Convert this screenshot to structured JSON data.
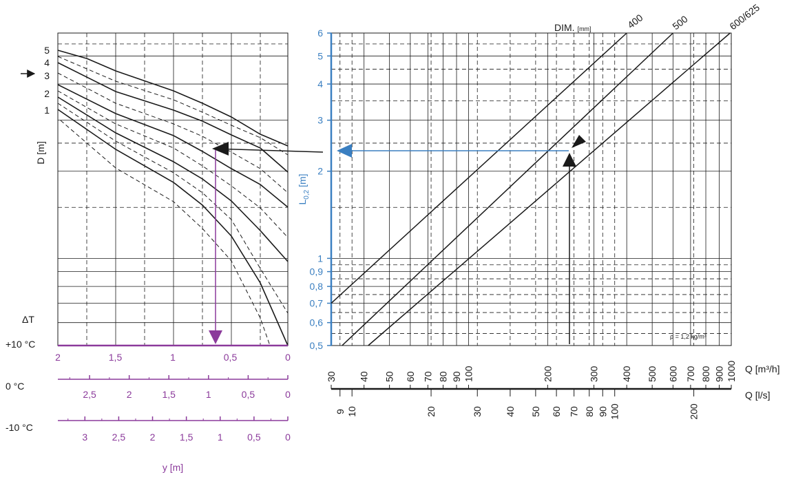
{
  "colors": {
    "black": "#1a1a1a",
    "blue": "#3a7fc1",
    "purple": "#8b3a9b"
  },
  "chart_data": [
    {
      "type": "line",
      "name": "throw-diagram",
      "ylabel": "D [m]",
      "y_tick_labels": [
        "1",
        "2",
        "3",
        "4",
        "5"
      ],
      "marker_label": "3",
      "delta_t_label": "ΔT",
      "y_axis_title": "y [m]",
      "scales": [
        {
          "label": "+10 °C",
          "ticks": [
            "2",
            "1,5",
            "1",
            "0,5",
            "0"
          ],
          "max": 2
        },
        {
          "label": "0 °C",
          "ticks": [
            "2,5",
            "2",
            "1,5",
            "1",
            "0,5",
            "0"
          ],
          "max": 2.9
        },
        {
          "label": "-10 °C",
          "ticks": [
            "3",
            "2,5",
            "2",
            "1,5",
            "1",
            "0,5",
            "0"
          ],
          "max": 3.4
        }
      ],
      "example_y_value": 0.6
    },
    {
      "type": "line",
      "name": "flow-diagram",
      "xlabel": "Q [m³/h]",
      "xlabel2": "Q [l/s]",
      "ylabel_main": "L",
      "ylabel_sub": "0,2",
      "ylabel_unit": " [m]",
      "dim_label": "DIM.",
      "dim_unit": "[mm]",
      "density_label": "ρ = 1,2 kg/m³",
      "x_scale": "log",
      "y_scale": "log",
      "xlim": [
        30,
        1000
      ],
      "ylim": [
        0.5,
        6
      ],
      "y_ticks": [
        0.5,
        0.6,
        0.7,
        0.8,
        0.9,
        1,
        2,
        3,
        4,
        5,
        6
      ],
      "y_tick_labels": [
        "0,5",
        "0,6",
        "0,7",
        "0,8",
        "0,9",
        "1",
        "2",
        "3",
        "4",
        "5",
        "6"
      ],
      "q_m3h_ticks": [
        30,
        40,
        50,
        60,
        70,
        80,
        90,
        100,
        200,
        300,
        400,
        500,
        600,
        700,
        800,
        900,
        1000
      ],
      "q_m3h_labels": [
        "30",
        "40",
        "50",
        "60",
        "70",
        "80",
        "90",
        "100",
        "200",
        "300",
        "400",
        "500",
        "600",
        "700",
        "800",
        "900",
        "1000"
      ],
      "q_ls_ticks": [
        9,
        10,
        20,
        30,
        40,
        50,
        60,
        70,
        80,
        90,
        100,
        200
      ],
      "q_ls_labels": [
        "9",
        "10",
        "20",
        "30",
        "40",
        "50",
        "60",
        "70",
        "80",
        "90",
        "100",
        "200"
      ],
      "series": [
        {
          "name": "400",
          "x": [
            30,
            400
          ],
          "y": [
            0.7,
            6
          ]
        },
        {
          "name": "500",
          "x": [
            33,
            600
          ],
          "y": [
            0.5,
            6
          ]
        },
        {
          "name": "600/625",
          "x": [
            41.5,
            990
          ],
          "y": [
            0.5,
            6
          ]
        }
      ],
      "example": {
        "q": 253,
        "l": 2.3
      }
    }
  ]
}
